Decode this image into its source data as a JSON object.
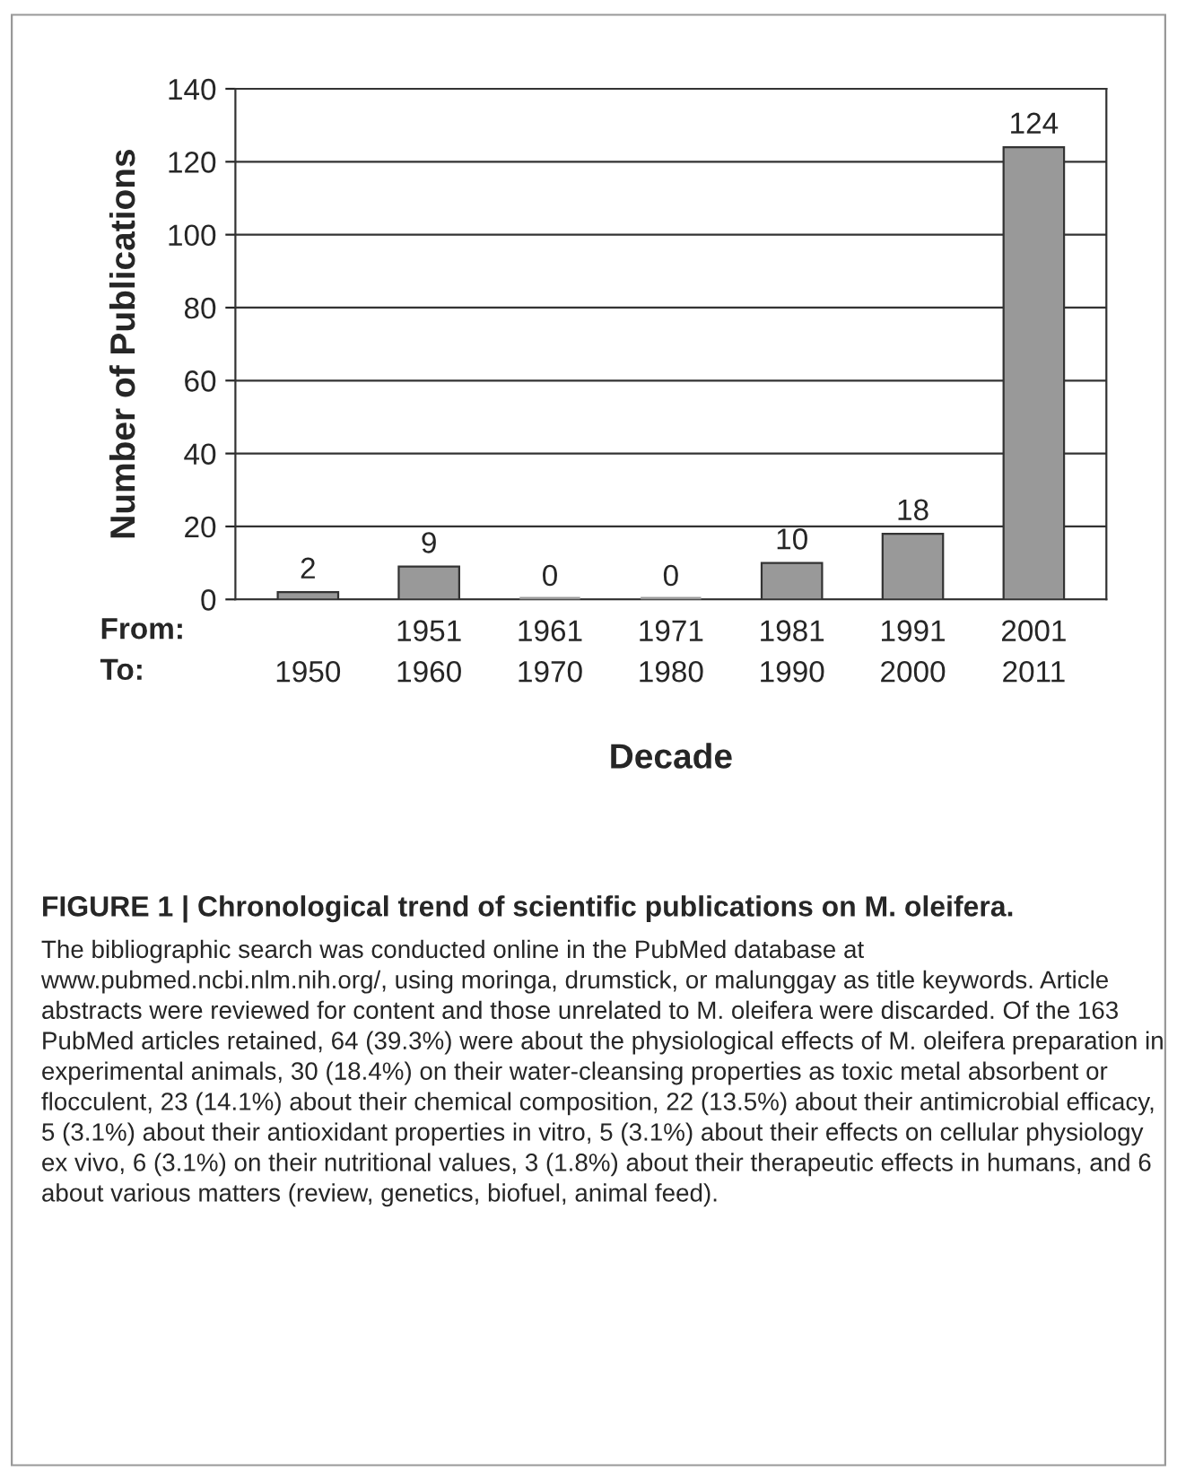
{
  "chart_data": {
    "type": "bar",
    "title": "FIGURE 1 | Chronological trend of scientific publications on M. oleifera.",
    "xlabel": "Decade",
    "ylabel": "Number of Publications",
    "categories": [
      "1950",
      "1951\n1960",
      "1961\n1970",
      "1971\n1980",
      "1981\n1990",
      "1991\n2000",
      "2001\n2011"
    ],
    "values": [
      2,
      9,
      0,
      0,
      10,
      18,
      124
    ],
    "color": "#999999",
    "ylim": [
      0,
      140
    ],
    "yticks": [
      0,
      20,
      40,
      60,
      80,
      100,
      120,
      140
    ],
    "grid": "y",
    "data_labels": true,
    "annotations": [
      "From:\nTo:",
      "The bibliographic search was conducted online in the PubMed database at www.pubmed.ncbi.nlm.nih.org/, using moringa, drumstick, or malunggay as title keywords. Article abstracts were reviewed for content and those unrelated to M. oleifera were discarded. Of the 163 PubMed articles retained, 64 (39.3%) were about the physiological effects of M. oleifera preparation in experimental animals, 30 (18.4%) on their water-cleansing properties as toxic metal absorbent or flocculent, 23 (14.1%) about their chemical composition, 22 (13.5%) about their antimicrobial efficacy, 5 (3.1%) about their antioxidant properties in vitro, 5 (3.1%) about their effects on cellular physiology ex vivo, 6 (3.1%) on their nutritional values, 3 (1.8%) about their therapeutic effects in humans, and 6 about various matters (review, genetics, biofuel, animal feed)."
    ]
  }
}
